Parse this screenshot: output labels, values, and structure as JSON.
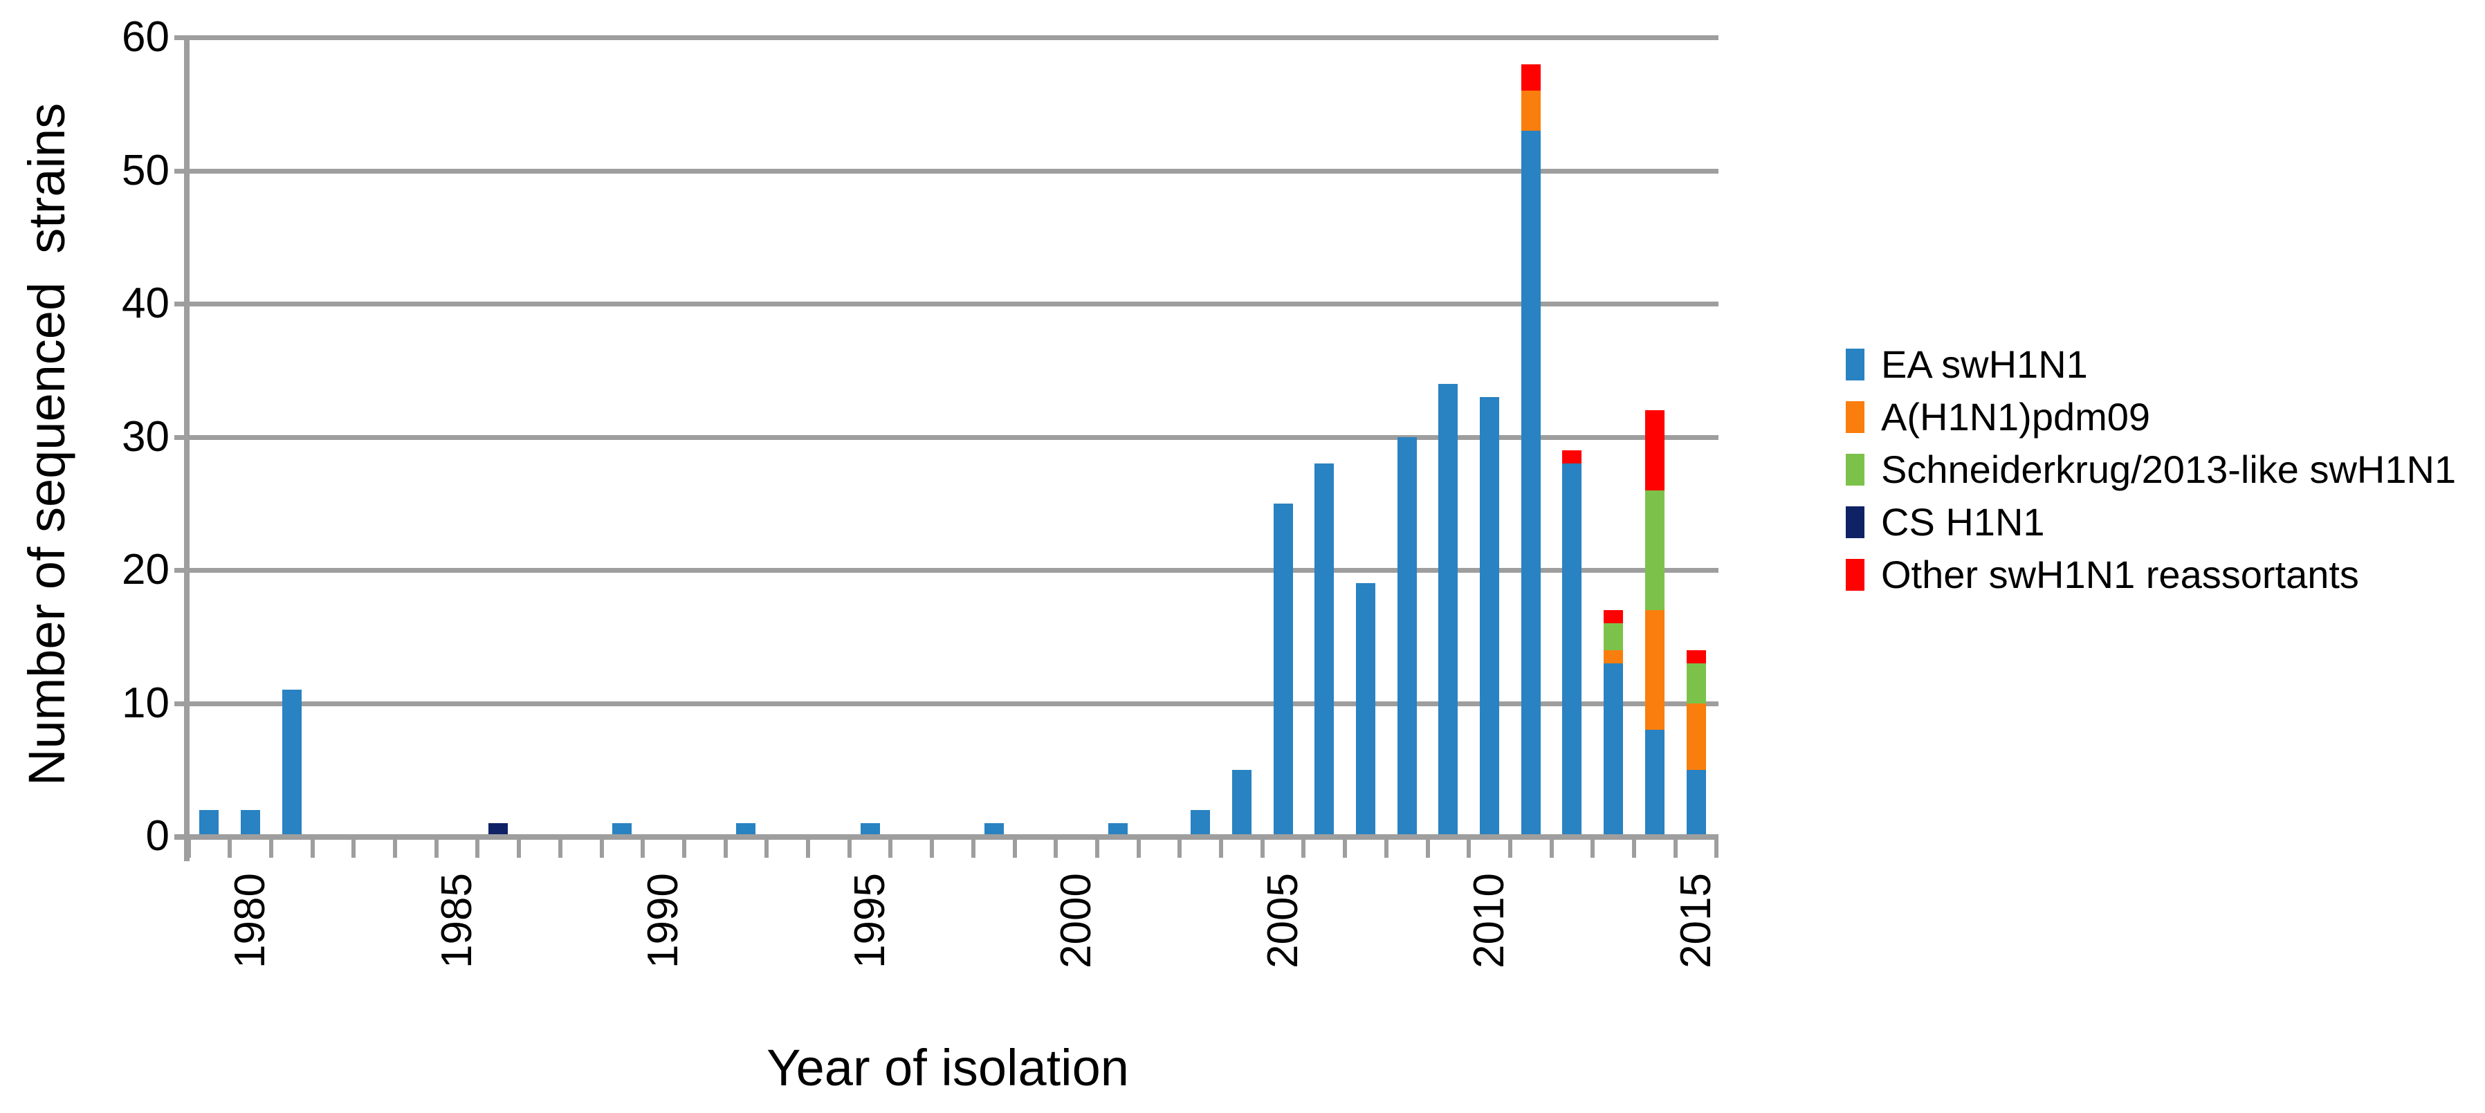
{
  "figure": {
    "background": "#FFFFFF"
  },
  "chart_data": {
    "type": "bar",
    "stacked": true,
    "title": "",
    "xlabel": "Year of isolation",
    "ylabel": "Number of sequenced  strains",
    "ylim": [
      0,
      60
    ],
    "y_ticks": [
      0,
      10,
      20,
      30,
      40,
      50,
      60
    ],
    "grid": "horizontal",
    "legend_position": "right",
    "axis_color": "#9E9E9E",
    "text_color": "#000000",
    "categories": [
      1979,
      1980,
      1981,
      1982,
      1983,
      1984,
      1985,
      1986,
      1987,
      1988,
      1989,
      1990,
      1991,
      1992,
      1993,
      1994,
      1995,
      1996,
      1997,
      1998,
      1999,
      2000,
      2001,
      2002,
      2003,
      2004,
      2005,
      2006,
      2007,
      2008,
      2009,
      2010,
      2011,
      2012,
      2013,
      2014,
      2015
    ],
    "labeled_years": [
      1980,
      1985,
      1990,
      1995,
      2000,
      2005,
      2010,
      2015
    ],
    "series": [
      {
        "name": "EA swH1N1",
        "color": "#2982C1",
        "values": [
          2,
          2,
          11,
          0,
          0,
          0,
          0,
          0,
          0,
          0,
          1,
          0,
          0,
          1,
          0,
          0,
          1,
          0,
          0,
          1,
          0,
          0,
          1,
          0,
          2,
          5,
          25,
          28,
          19,
          30,
          34,
          33,
          53,
          28,
          13,
          8,
          5
        ]
      },
      {
        "name": "A(H1N1)pdm09",
        "color": "#FA7E0D",
        "values": [
          0,
          0,
          0,
          0,
          0,
          0,
          0,
          0,
          0,
          0,
          0,
          0,
          0,
          0,
          0,
          0,
          0,
          0,
          0,
          0,
          0,
          0,
          0,
          0,
          0,
          0,
          0,
          0,
          0,
          0,
          0,
          0,
          3,
          0,
          1,
          9,
          5
        ]
      },
      {
        "name": "Schneiderkrug/2013-like swH1N1",
        "color": "#7CC24A",
        "values": [
          0,
          0,
          0,
          0,
          0,
          0,
          0,
          0,
          0,
          0,
          0,
          0,
          0,
          0,
          0,
          0,
          0,
          0,
          0,
          0,
          0,
          0,
          0,
          0,
          0,
          0,
          0,
          0,
          0,
          0,
          0,
          0,
          0,
          0,
          2,
          9,
          3
        ]
      },
      {
        "name": "CS H1N1",
        "color": "#0F2265",
        "values": [
          0,
          0,
          0,
          0,
          0,
          0,
          0,
          1,
          0,
          0,
          0,
          0,
          0,
          0,
          0,
          0,
          0,
          0,
          0,
          0,
          0,
          0,
          0,
          0,
          0,
          0,
          0,
          0,
          0,
          0,
          0,
          0,
          0,
          0,
          0,
          0,
          0
        ]
      },
      {
        "name": "Other swH1N1 reassortants",
        "color": "#FE0100",
        "values": [
          0,
          0,
          0,
          0,
          0,
          0,
          0,
          0,
          0,
          0,
          0,
          0,
          0,
          0,
          0,
          0,
          0,
          0,
          0,
          0,
          0,
          0,
          0,
          0,
          0,
          0,
          0,
          0,
          0,
          0,
          0,
          0,
          2,
          1,
          1,
          6,
          1
        ]
      }
    ]
  }
}
